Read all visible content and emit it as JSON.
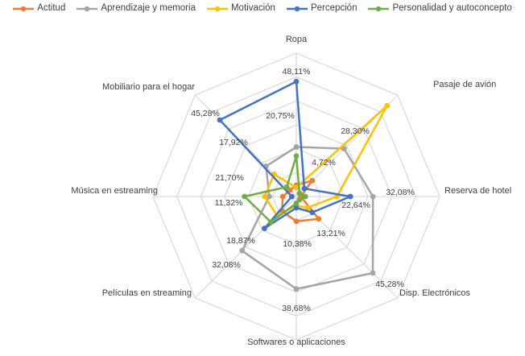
{
  "chart_data": {
    "type": "radar",
    "categories": [
      "Ropa",
      "Pasaje de avión",
      "Reserva de hotel",
      "Disp. Electrónicos",
      "Softwares o aplicaciones",
      "Películas en streaming",
      "Música en estreaming",
      "Mobiliario para el hogar"
    ],
    "series": [
      {
        "name": "Actitud",
        "color": "#ed7d31",
        "values": [
          4.72,
          9.43,
          1.89,
          13.21,
          10.38,
          8.49,
          5.66,
          3.77
        ]
      },
      {
        "name": "Aprendizaje y memoria",
        "color": "#a5a5a5",
        "values": [
          20.75,
          28.3,
          32.08,
          45.28,
          38.68,
          32.08,
          11.32,
          17.92
        ]
      },
      {
        "name": "Motivación",
        "color": "#ffc000",
        "values": [
          3.77,
          53.77,
          16.98,
          6.6,
          3.77,
          11.32,
          13.21,
          13.21
        ]
      },
      {
        "name": "Percepción",
        "color": "#4472c4",
        "values": [
          48.11,
          4.72,
          22.64,
          9.43,
          4.72,
          18.87,
          1.89,
          45.28
        ]
      },
      {
        "name": "Personalidad y autoconcepto",
        "color": "#70ad47",
        "values": [
          16.98,
          1.89,
          3.77,
          1.89,
          2.83,
          15.09,
          21.7,
          5.66
        ]
      }
    ],
    "data_labels": [
      {
        "text": "48,11%"
      },
      {
        "text": "20,75%"
      },
      {
        "text": "28,30%"
      },
      {
        "text": "4,72%"
      },
      {
        "text": "32,08%"
      },
      {
        "text": "22,64%"
      },
      {
        "text": "13,21%"
      },
      {
        "text": "45,28%"
      },
      {
        "text": "10,38%"
      },
      {
        "text": "38,68%"
      },
      {
        "text": "18,87%"
      },
      {
        "text": "32,08%"
      },
      {
        "text": "11,32%"
      },
      {
        "text": "21,70%"
      },
      {
        "text": "17,92%"
      },
      {
        "text": "45,28%"
      }
    ],
    "rmax": 60,
    "rings": 6,
    "grid": true,
    "legend": "top"
  }
}
